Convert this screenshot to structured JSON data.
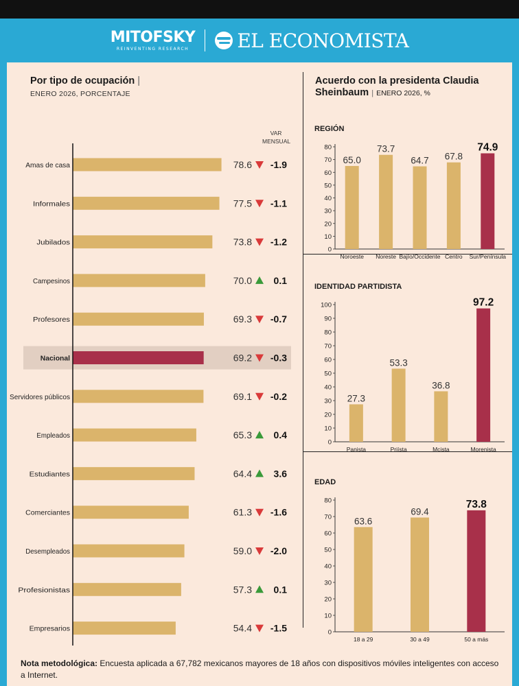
{
  "header": {
    "brand1": "MITOFSKY",
    "brand1_tagline": "REINVENTING RESEARCH",
    "brand2": "EL ECONOMISTA"
  },
  "left": {
    "title": "Por tipo de ocupación",
    "subtitle": "ENERO 2026, PORCENTAJE",
    "var_label_line1": "VAR",
    "var_label_line2": "MENSUAL"
  },
  "right": {
    "title_line1": "Acuerdo con la presidenta Claudia",
    "title_line2": "Sheinbaum",
    "subtitle": "ENERO 2026, %"
  },
  "note": {
    "label": "Nota metodológica:",
    "text": " Encuesta aplicada a 67,782 mexicanos mayores de 18 años con dispositivos móviles inteligentes con acceso a Internet."
  },
  "colors": {
    "bar": "#dbb46b",
    "highlight": "#a8304a",
    "highlight_band": "#e2cfc2",
    "up": "#3a9a3a",
    "down": "#d93a3a"
  },
  "chart_data": [
    {
      "type": "bar",
      "orientation": "horizontal",
      "categories": [
        "Amas de casa",
        "Informales",
        "Jubilados",
        "Campesinos",
        "Profesores",
        "Nacional",
        "Servidores públicos",
        "Empleados",
        "Estudiantes",
        "Comerciantes",
        "Desempleados",
        "Profesionistas",
        "Empresarios"
      ],
      "values": [
        78.6,
        77.5,
        73.8,
        70.0,
        69.3,
        69.2,
        69.1,
        65.3,
        64.4,
        61.3,
        59.0,
        57.3,
        54.4
      ],
      "value_labels": [
        "78.6",
        "77.5",
        "73.8",
        "70.0",
        "69.3",
        "69.2",
        "69.1",
        "65.3",
        "64.4",
        "61.3",
        "59.0",
        "57.3",
        "54.4"
      ],
      "var_mensual": [
        "-1.9",
        "-1.1",
        "-1.2",
        "0.1",
        "-0.7",
        "-0.3",
        "-0.2",
        "0.4",
        "3.6",
        "-1.6",
        "-2.0",
        "0.1",
        "-1.5"
      ],
      "var_direction": [
        "down",
        "down",
        "down",
        "up",
        "down",
        "down",
        "down",
        "up",
        "up",
        "down",
        "down",
        "up",
        "down"
      ],
      "highlight": "Nacional",
      "xlim": [
        0,
        90
      ]
    },
    {
      "type": "bar",
      "section": "REGIÓN",
      "categories": [
        "Noroeste",
        "Noreste",
        "Bajío/Occidente",
        "Centro",
        "Sur/Península"
      ],
      "values": [
        65.0,
        73.7,
        64.7,
        67.8,
        74.9
      ],
      "value_labels": [
        "65.0",
        "73.7",
        "64.7",
        "67.8",
        "74.9"
      ],
      "highlight": "Sur/Península",
      "ylim": [
        0,
        80
      ],
      "yticks": [
        0,
        10,
        20,
        30,
        40,
        50,
        60,
        70,
        80
      ]
    },
    {
      "type": "bar",
      "section": "IDENTIDAD PARTIDISTA",
      "categories": [
        "Panista",
        "Priísta",
        "Mcista",
        "Morenista"
      ],
      "values": [
        27.3,
        53.3,
        36.8,
        97.2
      ],
      "value_labels": [
        "27.3",
        "53.3",
        "36.8",
        "97.2"
      ],
      "highlight": "Morenista",
      "ylim": [
        0,
        100
      ],
      "yticks": [
        0,
        10,
        20,
        30,
        40,
        50,
        60,
        70,
        80,
        90,
        100
      ]
    },
    {
      "type": "bar",
      "section": "EDAD",
      "categories": [
        "18 a 29",
        "30 a 49",
        "50 a más"
      ],
      "values": [
        63.6,
        69.4,
        73.8
      ],
      "value_labels": [
        "63.6",
        "69.4",
        "73.8"
      ],
      "highlight": "50 a más",
      "ylim": [
        0,
        80
      ],
      "yticks": [
        0,
        10,
        20,
        30,
        40,
        50,
        60,
        70,
        80
      ]
    }
  ]
}
